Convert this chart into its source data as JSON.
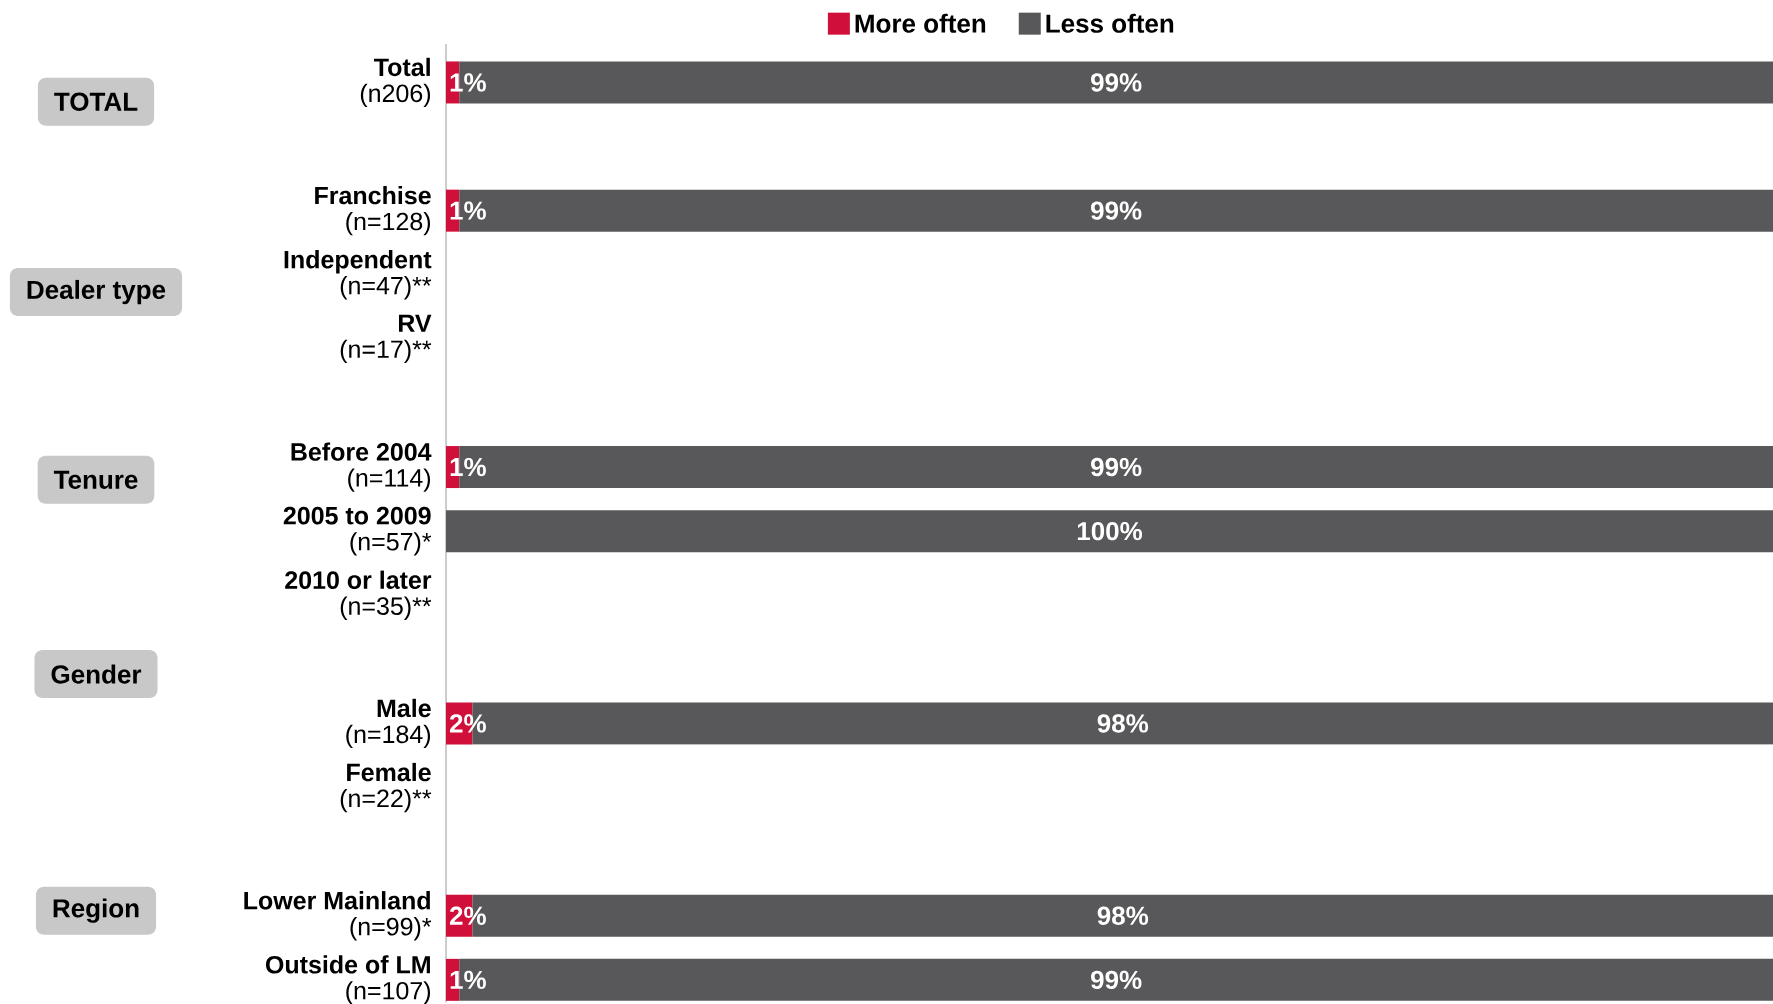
{
  "chart_data": {
    "type": "bar",
    "orientation": "horizontal",
    "stacked": true,
    "categories": [
      "**Total**\n(n206)",
      null,
      "**Franchise**\n(n=128)",
      "**Independent**\n(n=47)**",
      "**RV**\n(n=17)**",
      null,
      "**Before 2004**\n(n=114)",
      "**2005 to 2009**\n(n=57)*",
      "**2010 or later**\n(n=35)**",
      null,
      "**Male**\n(n=184)",
      "**Female**\n(n=22)**",
      null,
      "**Lower Mainland**\n(n=99)*",
      "**Outside of LM**\n(n=107)"
    ],
    "series": [
      {
        "name": "More often",
        "color": "#d0103a",
        "values": [
          1,
          null,
          1,
          null,
          null,
          null,
          1,
          null,
          null,
          null,
          2,
          null,
          null,
          2,
          1
        ],
        "value_labels": [
          "1%",
          null,
          "1%",
          null,
          null,
          null,
          "1%",
          null,
          null,
          null,
          "2%",
          null,
          null,
          "2%",
          "1%"
        ]
      },
      {
        "name": "Less often",
        "color": "#58585a",
        "values": [
          99,
          null,
          99,
          null,
          null,
          null,
          99,
          100,
          null,
          null,
          98,
          null,
          null,
          98,
          99
        ],
        "value_labels": [
          "99%",
          null,
          "99%",
          null,
          null,
          null,
          "99%",
          "100%",
          null,
          null,
          "98%",
          null,
          null,
          "98%",
          "99%"
        ]
      }
    ],
    "xlim": [
      0,
      100
    ],
    "tick_labels": "y",
    "legend": "top",
    "annotations": [
      "TOTAL",
      "Dealer type",
      "Tenure",
      "Gender",
      "Region"
    ]
  }
}
